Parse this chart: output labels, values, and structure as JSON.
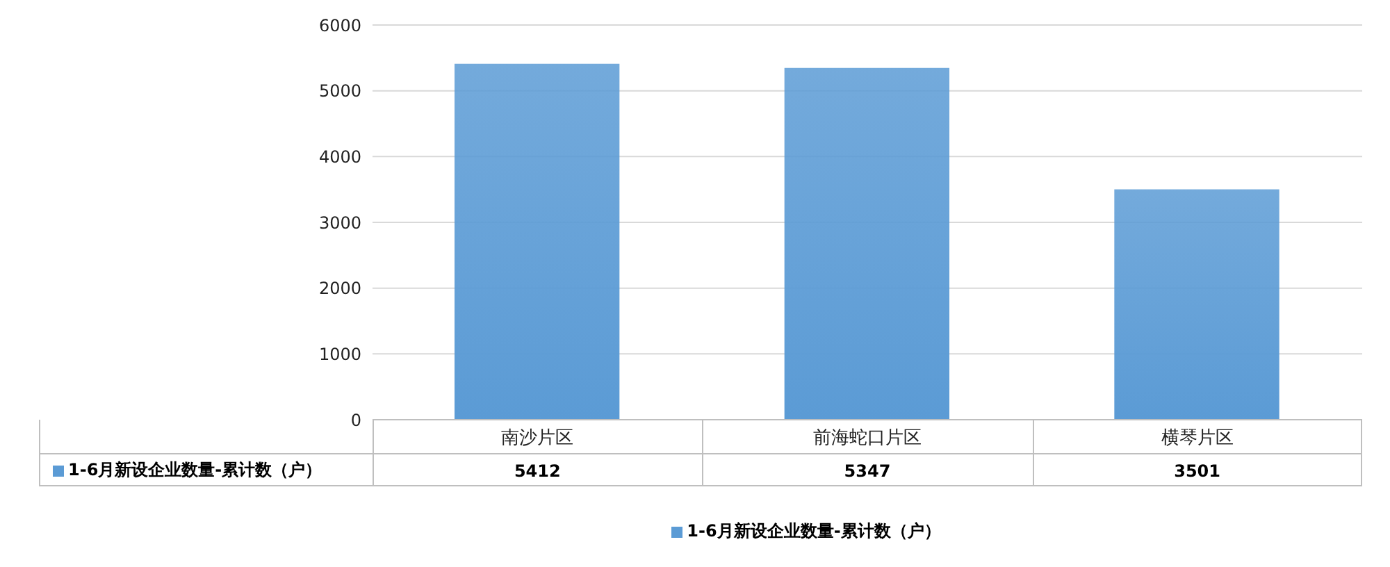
{
  "chart_data": {
    "type": "bar",
    "categories": [
      "南沙片区",
      "前海蛇口片区",
      "横琴片区"
    ],
    "series": [
      {
        "name": "1-6月新设企业数量-累计数（户）",
        "color": "#5b9bd5",
        "values": [
          5412,
          5347,
          3501
        ]
      }
    ],
    "ylim": [
      0,
      6000
    ],
    "yticks": [
      0,
      1000,
      2000,
      3000,
      4000,
      5000,
      6000
    ],
    "grid": "y",
    "legend": "bottom",
    "data_labels": true
  }
}
